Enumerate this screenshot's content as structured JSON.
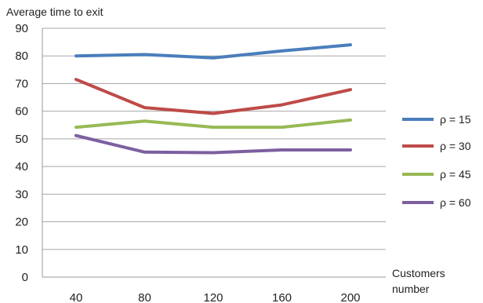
{
  "chart_data": {
    "type": "line",
    "ylabel": "Average time to exit",
    "xlabel": [
      "Customers",
      "number"
    ],
    "categories": [
      "40",
      "80",
      "120",
      "160",
      "200"
    ],
    "ylim": [
      0,
      90
    ],
    "yticks": [
      0,
      10,
      20,
      30,
      40,
      50,
      60,
      70,
      80,
      90
    ],
    "grid": "horizontal",
    "legend_position": "right",
    "series": [
      {
        "name": "ρ = 15",
        "color": "#4a7ebb",
        "values": [
          80,
          80.5,
          79.3,
          81.8,
          84
        ]
      },
      {
        "name": "ρ = 30",
        "color": "#be4b48",
        "values": [
          71.5,
          61.3,
          59.2,
          62.3,
          67.8
        ]
      },
      {
        "name": "ρ = 45",
        "color": "#98b954",
        "values": [
          54.2,
          56.4,
          54.2,
          54.2,
          56.8
        ]
      },
      {
        "name": "ρ = 60",
        "color": "#7d5fa0",
        "values": [
          51.2,
          45.2,
          45,
          46,
          46
        ]
      }
    ]
  }
}
